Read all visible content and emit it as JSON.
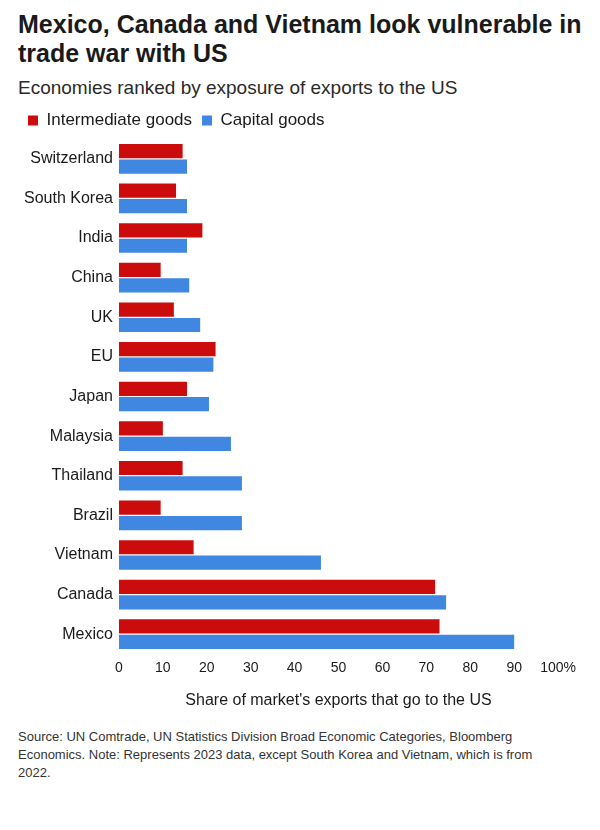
{
  "chart_data": {
    "type": "bar",
    "orientation": "horizontal",
    "title": "Mexico, Canada and Vietnam look vulnerable in trade war with US",
    "subtitle": "Economies ranked by exposure of exports to the US",
    "x_label": "Share of market's exports that go to the US",
    "note": "Source: UN Comtrade, UN Statistics Division Broad Economic Categories, Bloomberg Economics. Note: Represents 2023 data, except South Korea and Vietnam, which is from 2022.",
    "categories": [
      "Switzerland",
      "South Korea",
      "India",
      "China",
      "UK",
      "EU",
      "Japan",
      "Malaysia",
      "Thailand",
      "Brazil",
      "Vietnam",
      "Canada",
      "Mexico"
    ],
    "series": [
      {
        "name": "Intermediate goods",
        "color": "#cc0c0c",
        "values": [
          14.5,
          13,
          19,
          9.5,
          12.5,
          22,
          15.5,
          10,
          14.5,
          9.5,
          17,
          72,
          73
        ]
      },
      {
        "name": "Capital goods",
        "color": "#3f87e0",
        "values": [
          15.5,
          15.5,
          15.5,
          16,
          18.5,
          21.5,
          20.5,
          25.5,
          28,
          28,
          46,
          74.5,
          90
        ]
      }
    ],
    "xlim": [
      0,
      100
    ],
    "xticks": [
      0,
      10,
      20,
      30,
      40,
      50,
      60,
      70,
      80,
      90,
      {
        "value": 100,
        "label": "100%"
      }
    ],
    "grid": false,
    "legend": "top-left"
  }
}
